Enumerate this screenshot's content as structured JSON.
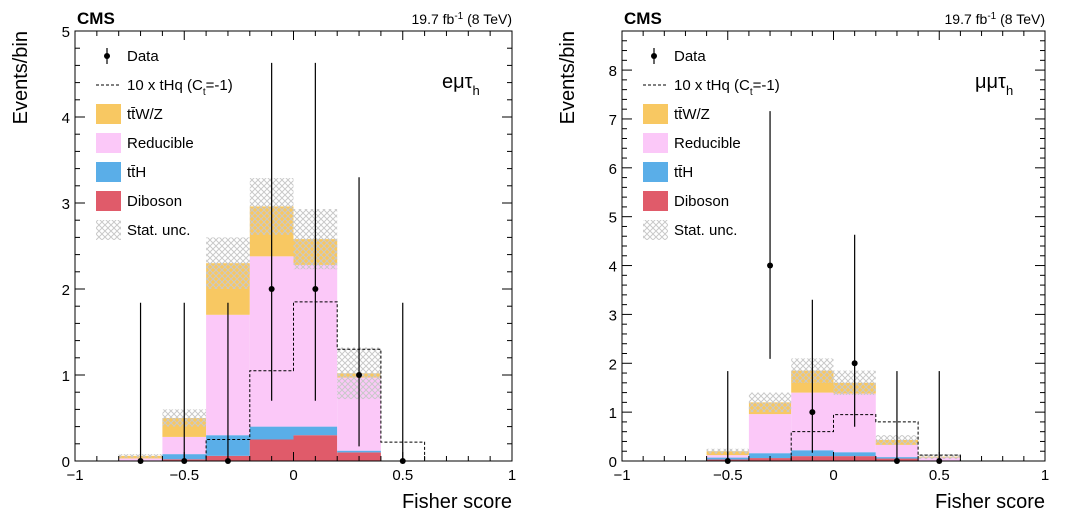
{
  "palette": {
    "ttwz": "#f8c862",
    "reducible": "#fbc8f8",
    "tth": "#5aaee8",
    "diboson": "#e05b6a",
    "signal": "#000000",
    "data": "#000000",
    "stat": "#c9c9c9"
  },
  "legend_labels": {
    "data": "Data",
    "signal_main": "10 x tHq (C",
    "signal_sub": "t",
    "signal_tail": "=-1)",
    "ttwz": "tt̄W/Z",
    "reducible": "Reducible",
    "tth": "tt̄H",
    "diboson": "Diboson",
    "stat": "Stat. unc."
  },
  "chart_data": [
    {
      "type": "bar",
      "stacked": true,
      "experiment": "CMS",
      "lumi_main": "19.7 fb",
      "lumi_sup": "-1",
      "lumi_tail": " (8 TeV)",
      "channel": "eμτ",
      "channel_sub": "h",
      "xlabel": "Fisher score",
      "ylabel": "Events/bin",
      "xlim": [
        -1,
        1
      ],
      "ylim": [
        0,
        5
      ],
      "xticks": [
        -1,
        -0.5,
        0,
        0.5,
        1
      ],
      "xtick_labels": [
        "−1",
        "−0.5",
        "0",
        "0.5",
        "1"
      ],
      "yticks": [
        0,
        1,
        2,
        3,
        4,
        5
      ],
      "ytick_labels": [
        "0",
        "1",
        "2",
        "3",
        "4",
        "5"
      ],
      "legend_position": "top-left",
      "bin_edges": [
        -0.8,
        -0.6,
        -0.4,
        -0.2,
        0.0,
        0.2,
        0.4,
        0.6
      ],
      "series": [
        {
          "name": "Diboson",
          "key": "diboson",
          "values": [
            0.0,
            0.02,
            0.06,
            0.25,
            0.3,
            0.1,
            0.0
          ]
        },
        {
          "name": "tt̄H",
          "key": "tth",
          "values": [
            0.0,
            0.06,
            0.24,
            0.15,
            0.1,
            0.02,
            0.0
          ]
        },
        {
          "name": "Reducible",
          "key": "reducible",
          "values": [
            0.03,
            0.2,
            1.4,
            1.98,
            1.88,
            0.85,
            0.0
          ]
        },
        {
          "name": "tt̄W/Z",
          "key": "ttwz",
          "values": [
            0.03,
            0.22,
            0.6,
            0.58,
            0.3,
            0.05,
            0.0
          ]
        }
      ],
      "stat_unc": [
        0.02,
        0.1,
        0.3,
        0.33,
        0.35,
        0.3,
        0.0
      ],
      "signal": {
        "name": "10 x tHq (C_t=-1)",
        "values": [
          0.0,
          0.0,
          0.25,
          1.05,
          1.85,
          1.3,
          0.22
        ]
      },
      "data": {
        "name": "Data",
        "x": [
          -0.7,
          -0.5,
          -0.3,
          -0.1,
          0.1,
          0.3,
          0.5
        ],
        "y": [
          0,
          0,
          0,
          2,
          2,
          1,
          0
        ],
        "err_up": [
          1.84,
          1.84,
          1.84,
          2.63,
          2.63,
          2.3,
          1.84
        ],
        "err_down": [
          0,
          0,
          0,
          1.3,
          1.3,
          0.83,
          0
        ]
      }
    },
    {
      "type": "bar",
      "stacked": true,
      "experiment": "CMS",
      "lumi_main": "19.7 fb",
      "lumi_sup": "-1",
      "lumi_tail": " (8 TeV)",
      "channel": "μμτ",
      "channel_sub": "h",
      "xlabel": "Fisher score",
      "ylabel": "Events/bin",
      "xlim": [
        -1,
        1
      ],
      "ylim": [
        0,
        8.8
      ],
      "xticks": [
        -1,
        -0.5,
        0,
        0.5,
        1
      ],
      "xtick_labels": [
        "−1",
        "−0.5",
        "0",
        "0.5",
        "1"
      ],
      "yticks": [
        0,
        1,
        2,
        3,
        4,
        5,
        6,
        7,
        8
      ],
      "ytick_labels": [
        "0",
        "1",
        "2",
        "3",
        "4",
        "5",
        "6",
        "7",
        "8"
      ],
      "legend_position": "top-left",
      "bin_edges": [
        -0.6,
        -0.4,
        -0.2,
        0.0,
        0.2,
        0.4,
        0.6
      ],
      "series": [
        {
          "name": "Diboson",
          "key": "diboson",
          "values": [
            0.03,
            0.06,
            0.1,
            0.1,
            0.05,
            0.0
          ]
        },
        {
          "name": "tt̄H",
          "key": "tth",
          "values": [
            0.04,
            0.1,
            0.12,
            0.08,
            0.03,
            0.0
          ]
        },
        {
          "name": "Reducible",
          "key": "reducible",
          "values": [
            0.05,
            0.8,
            1.18,
            1.2,
            0.25,
            0.07
          ]
        },
        {
          "name": "tt̄W/Z",
          "key": "ttwz",
          "values": [
            0.08,
            0.24,
            0.45,
            0.22,
            0.1,
            0.02
          ]
        }
      ],
      "stat_unc": [
        0.05,
        0.2,
        0.25,
        0.25,
        0.1,
        0.05
      ],
      "signal": {
        "name": "10 x tHq (C_t=-1)",
        "values": [
          0.0,
          0.0,
          0.6,
          0.95,
          0.8,
          0.12
        ]
      },
      "data": {
        "name": "Data",
        "x": [
          -0.5,
          -0.3,
          -0.1,
          0.1,
          0.3,
          0.5
        ],
        "y": [
          0,
          4,
          1,
          2,
          0,
          0
        ],
        "err_up": [
          1.84,
          3.16,
          2.3,
          2.63,
          1.84,
          1.84
        ],
        "err_down": [
          0,
          1.91,
          0.83,
          1.3,
          0,
          0
        ]
      }
    }
  ]
}
